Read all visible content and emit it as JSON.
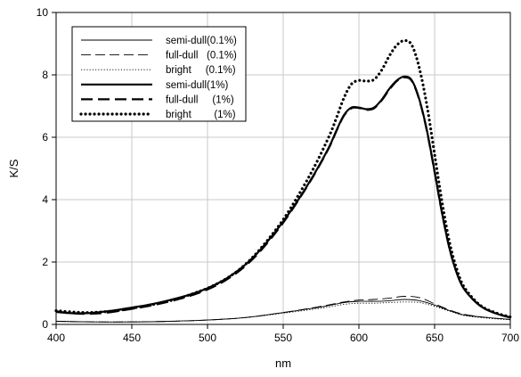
{
  "chart_data": {
    "type": "line",
    "title": "",
    "xlabel": "nm",
    "ylabel": "K/S",
    "xlim": [
      400,
      700
    ],
    "ylim": [
      0,
      10
    ],
    "xticks": [
      "400",
      "450",
      "500",
      "550",
      "600",
      "650",
      "700"
    ],
    "yticks": [
      "0",
      "2",
      "4",
      "6",
      "8",
      "10"
    ],
    "grid": true,
    "legend_position": "top-left",
    "series": [
      {
        "name": "semi-dull(0.1%)",
        "style": "thin-solid",
        "x": [
          400,
          425,
          450,
          475,
          500,
          525,
          550,
          575,
          590,
          600,
          610,
          620,
          630,
          640,
          650,
          660,
          670,
          685,
          700
        ],
        "y": [
          0.1,
          0.08,
          0.08,
          0.1,
          0.14,
          0.22,
          0.38,
          0.56,
          0.7,
          0.74,
          0.74,
          0.76,
          0.8,
          0.76,
          0.62,
          0.44,
          0.3,
          0.22,
          0.16
        ]
      },
      {
        "name": "full-dull   (0.1%)",
        "style": "thin-dash",
        "x": [
          400,
          425,
          450,
          475,
          500,
          525,
          550,
          575,
          590,
          600,
          610,
          620,
          630,
          640,
          650,
          660,
          670,
          685,
          700
        ],
        "y": [
          0.1,
          0.08,
          0.08,
          0.1,
          0.14,
          0.22,
          0.38,
          0.58,
          0.72,
          0.78,
          0.8,
          0.84,
          0.9,
          0.86,
          0.66,
          0.46,
          0.32,
          0.22,
          0.16
        ]
      },
      {
        "name": "bright     (0.1%)",
        "style": "thin-dot",
        "x": [
          400,
          425,
          450,
          475,
          500,
          525,
          550,
          575,
          590,
          600,
          610,
          620,
          630,
          640,
          650,
          660,
          670,
          685,
          700
        ],
        "y": [
          0.1,
          0.08,
          0.08,
          0.1,
          0.14,
          0.22,
          0.36,
          0.52,
          0.64,
          0.68,
          0.68,
          0.7,
          0.72,
          0.7,
          0.58,
          0.42,
          0.28,
          0.2,
          0.15
        ]
      },
      {
        "name": "semi-dull(1%)",
        "style": "thick-solid",
        "x": [
          400,
          410,
          420,
          430,
          440,
          450,
          460,
          470,
          480,
          490,
          500,
          510,
          520,
          530,
          540,
          550,
          560,
          570,
          580,
          585,
          590,
          595,
          600,
          605,
          610,
          615,
          620,
          625,
          630,
          635,
          640,
          645,
          650,
          655,
          660,
          665,
          670,
          680,
          690,
          700
        ],
        "y": [
          0.4,
          0.36,
          0.36,
          0.4,
          0.46,
          0.54,
          0.62,
          0.72,
          0.84,
          0.98,
          1.16,
          1.4,
          1.72,
          2.14,
          2.68,
          3.3,
          4.0,
          4.78,
          5.66,
          6.2,
          6.7,
          6.95,
          6.95,
          6.9,
          6.95,
          7.2,
          7.55,
          7.82,
          7.95,
          7.82,
          7.2,
          6.2,
          4.9,
          3.55,
          2.4,
          1.6,
          1.1,
          0.6,
          0.36,
          0.22
        ]
      },
      {
        "name": "full-dull     (1%)",
        "style": "thick-dash",
        "x": [
          400,
          410,
          420,
          430,
          440,
          450,
          460,
          470,
          480,
          490,
          500,
          510,
          520,
          530,
          540,
          550,
          560,
          570,
          580,
          585,
          590,
          595,
          600,
          605,
          610,
          615,
          620,
          625,
          630,
          635,
          640,
          645,
          650,
          655,
          660,
          665,
          670,
          680,
          690,
          700
        ],
        "y": [
          0.42,
          0.36,
          0.34,
          0.36,
          0.42,
          0.5,
          0.58,
          0.68,
          0.8,
          0.94,
          1.12,
          1.36,
          1.68,
          2.1,
          2.64,
          3.26,
          3.98,
          4.76,
          5.64,
          6.18,
          6.68,
          6.93,
          6.94,
          6.88,
          6.93,
          7.18,
          7.52,
          7.8,
          7.92,
          7.8,
          7.18,
          6.18,
          4.88,
          3.54,
          2.4,
          1.6,
          1.1,
          0.6,
          0.36,
          0.22
        ]
      },
      {
        "name": "bright        (1%)",
        "style": "thick-dot",
        "x": [
          400,
          410,
          420,
          430,
          440,
          450,
          460,
          470,
          480,
          490,
          500,
          510,
          520,
          530,
          540,
          550,
          560,
          570,
          580,
          585,
          590,
          595,
          600,
          605,
          610,
          615,
          620,
          625,
          630,
          635,
          640,
          645,
          650,
          655,
          660,
          665,
          670,
          680,
          690,
          700
        ],
        "y": [
          0.44,
          0.4,
          0.38,
          0.4,
          0.44,
          0.52,
          0.6,
          0.7,
          0.82,
          0.98,
          1.16,
          1.4,
          1.72,
          2.16,
          2.72,
          3.36,
          4.14,
          5.0,
          6.0,
          6.6,
          7.25,
          7.7,
          7.82,
          7.8,
          7.85,
          8.15,
          8.6,
          8.95,
          9.1,
          8.95,
          8.2,
          7.0,
          5.45,
          3.9,
          2.6,
          1.72,
          1.16,
          0.62,
          0.38,
          0.24
        ]
      }
    ]
  }
}
